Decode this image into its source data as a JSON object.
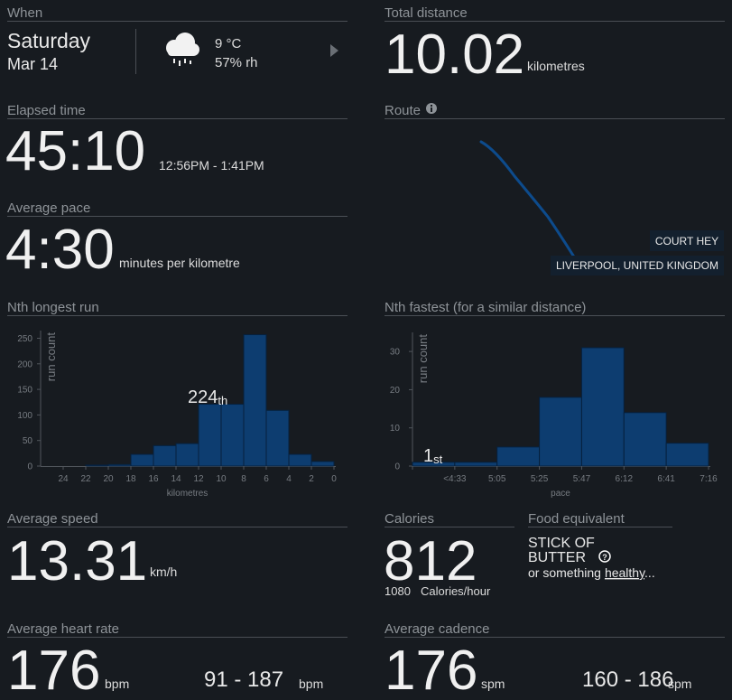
{
  "when": {
    "label": "When",
    "day": "Saturday",
    "date": "Mar 14",
    "temperature": "9 °C",
    "humidity": "57% rh"
  },
  "total_distance": {
    "label": "Total distance",
    "value": "10.02",
    "unit": "kilometres"
  },
  "elapsed_time": {
    "label": "Elapsed time",
    "value": "45:10",
    "range": "12:56PM - 1:41PM"
  },
  "route": {
    "label": "Route",
    "places": [
      "COURT HEY",
      "LIVERPOOL, UNITED KINGDOM"
    ]
  },
  "average_pace": {
    "label": "Average pace",
    "value": "4:30",
    "unit": "minutes per kilometre"
  },
  "chart_data": [
    {
      "type": "histogram",
      "title": "Nth longest run",
      "bins": [
        24,
        22,
        20,
        18,
        16,
        14,
        12,
        10,
        8,
        6,
        4,
        2,
        0
      ],
      "values": [
        0,
        2,
        3,
        23,
        40,
        44,
        121,
        121,
        257,
        109,
        23,
        9
      ],
      "xlim": [
        26,
        0
      ],
      "xticks": [
        24,
        22,
        20,
        18,
        16,
        14,
        12,
        10,
        8,
        6,
        4,
        2,
        0
      ],
      "ylim": [
        0,
        265
      ],
      "yticks": [
        0,
        50,
        100,
        150,
        200,
        250
      ],
      "xlabel": "kilometres",
      "ylabel": "run count",
      "color": "#0d3d70",
      "annotation": {
        "text": "224",
        "suffix": "th"
      }
    },
    {
      "type": "histogram",
      "title": "Nth fastest (for a similar distance)",
      "bins": [
        null,
        "<4:33",
        "5:05",
        "5:25",
        "5:47",
        "6:12",
        "6:41",
        "7:16"
      ],
      "values": [
        1,
        1,
        5,
        18,
        31,
        14,
        6
      ],
      "ylim": [
        0,
        35
      ],
      "yticks": [
        0,
        10,
        20,
        30
      ],
      "xlabel": "pace",
      "ylabel": "run count",
      "color": "#0d3d70",
      "annotation": {
        "text": "1",
        "suffix": "st"
      }
    }
  ],
  "average_speed": {
    "label": "Average speed",
    "value": "13.31",
    "unit": "km/h"
  },
  "calories": {
    "label": "Calories",
    "value": "812",
    "rate": "1080",
    "rate_unit": "Calories/hour"
  },
  "food": {
    "label": "Food equivalent",
    "line1": "STICK OF",
    "line2": "BUTTER",
    "note": "or something",
    "link": "healthy",
    "suffix": "..."
  },
  "heart_rate": {
    "label": "Average heart rate",
    "value": "176",
    "unit": "bpm",
    "range": "91 - 187",
    "range_unit": "bpm"
  },
  "cadence": {
    "label": "Average cadence",
    "value": "176",
    "unit": "spm",
    "range": "160 - 186",
    "range_unit": "spm"
  }
}
